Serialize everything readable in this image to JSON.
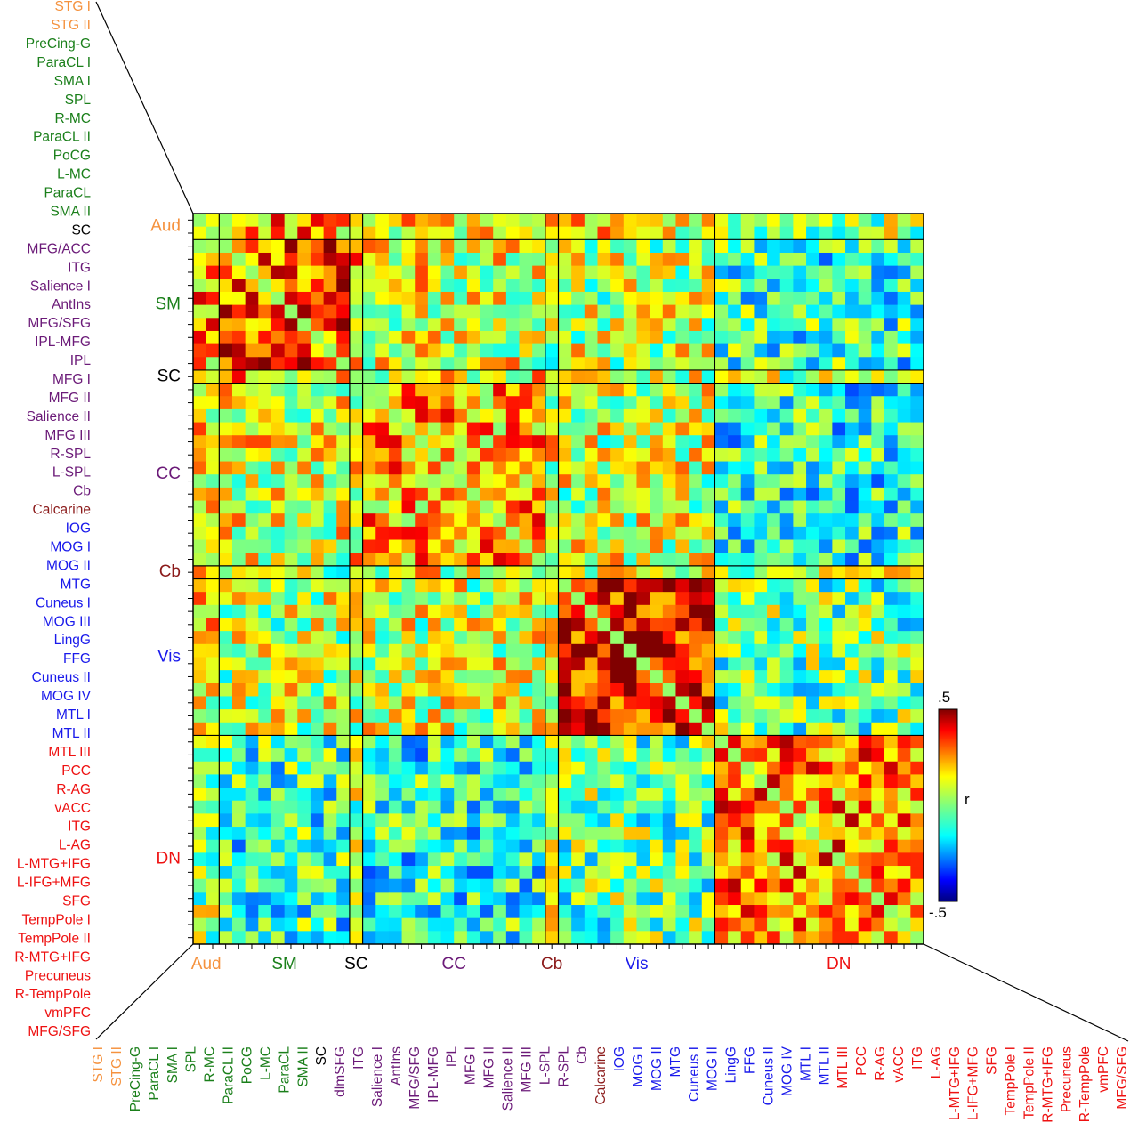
{
  "chart_data": {
    "type": "heatmap",
    "colorbar": {
      "label": "r",
      "max_label": ".5",
      "min_label": "-.5",
      "range": [
        -0.5,
        0.5
      ]
    },
    "colors": {
      "Aud": "#f5923e",
      "SM": "#1a7f1a",
      "SC": "#000000",
      "CC": "#6b1a78",
      "Cb": "#8b1a1a",
      "Vis": "#1a1aeb",
      "DN": "#ee1111"
    },
    "groups": [
      {
        "label": "Aud",
        "count": 2
      },
      {
        "label": "SM",
        "count": 10
      },
      {
        "label": "SC",
        "count": 1
      },
      {
        "label": "CC",
        "count": 14
      },
      {
        "label": "Cb",
        "count": 1
      },
      {
        "label": "Vis",
        "count": 12
      },
      {
        "label": "DN",
        "count": 19
      }
    ],
    "row_labels": [
      "STG I",
      "STG II",
      "PreCing-G",
      "ParaCL I",
      "SMA I",
      "SPL",
      "R-MC",
      "ParaCL II",
      "PoCG",
      "L-MC",
      "ParaCL",
      "SMA II",
      "SC",
      "MFG/ACC",
      "ITG",
      "Salience I",
      "AntIns",
      "MFG/SFG",
      "IPL-MFG",
      "IPL",
      "MFG I",
      "MFG II",
      "Salience II",
      "MFG III",
      "R-SPL",
      "L-SPL",
      "Cb",
      "Calcarine",
      "IOG",
      "MOG I",
      "MOG II",
      "MTG",
      "Cuneus I",
      "MOG III",
      "LingG",
      "FFG",
      "Cuneus II",
      "MOG IV",
      "MTL I",
      "MTL II",
      "MTL III",
      "PCC",
      "R-AG",
      "vACC",
      "ITG",
      "L-AG",
      "L-MTG+IFG",
      "L-IFG+MFG",
      "SFG",
      "TempPole I",
      "TempPole II",
      "R-MTG+IFG",
      "Precuneus",
      "R-TempPole",
      "vmPFC",
      "MFG/SFG"
    ],
    "col_labels": [
      "STG I",
      "STG II",
      "PreCing-G",
      "ParaCL I",
      "SMA I",
      "SPL",
      "R-MC",
      "ParaCL II",
      "PoCG",
      "L-MC",
      "ParaCL",
      "SMA II",
      "SC",
      "dlmSFG",
      "ITG",
      "Salience I",
      "AntIns",
      "MFG/SFG",
      "IPL-MFG",
      "IPL",
      "MFG I",
      "MFG II",
      "Salience II",
      "MFG III",
      "L-SPL",
      "R-SPL",
      "Cb",
      "Calcarine",
      "IOG",
      "MOG I",
      "MOG II",
      "MTG",
      "Cuneus I",
      "MOG II",
      "LingG",
      "FFG",
      "Cuneus II",
      "MOG IV",
      "MTL I",
      "MTL II",
      "MTL III",
      "PCC",
      "R-AG",
      "vACC",
      "ITG",
      "L-AG",
      "L-MTG+IFG",
      "L-IFG+MFG",
      "SFG",
      "TempPole I",
      "TempPole II",
      "R-MTG+IFG",
      "Precuneus",
      "R-TempPole",
      "vmPFC",
      "MFG/SFG"
    ],
    "within_network_r": {
      "Aud": 0.25,
      "SM": 0.32,
      "SC": 0.2,
      "CC": 0.2,
      "Cb": 0.2,
      "Vis": 0.38,
      "DN": 0.25
    },
    "between_network_r": {
      "Aud-SM": 0.22,
      "Aud-SC": 0.18,
      "Aud-CC": 0.12,
      "Aud-Cb": 0.1,
      "Aud-Vis": 0.12,
      "Aud-DN": 0.05,
      "SM-SC": 0.18,
      "SM-CC": 0.1,
      "SM-Cb": 0.05,
      "SM-Vis": 0.06,
      "SM-DN": -0.08,
      "SC-CC": 0.12,
      "SC-Cb": 0.1,
      "SC-Vis": 0.08,
      "SC-DN": 0.02,
      "CC-Cb": 0.1,
      "CC-Vis": 0.08,
      "CC-DN": -0.1,
      "Cb-Vis": 0.12,
      "Cb-DN": 0.04,
      "Vis-DN": -0.02
    }
  }
}
